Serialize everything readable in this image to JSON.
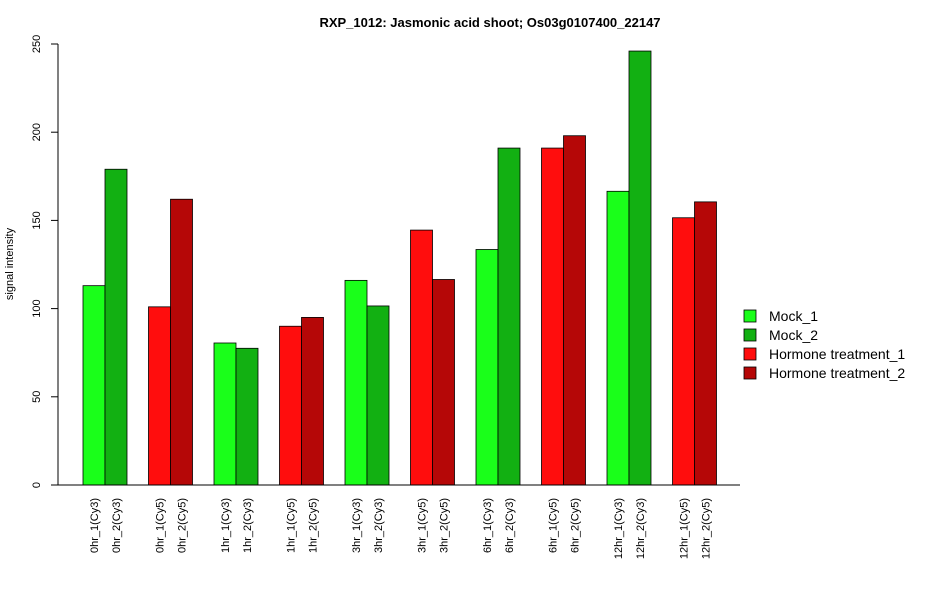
{
  "chart_data": {
    "type": "bar",
    "title": "RXP_1012: Jasmonic acid shoot; Os03g0107400_22147",
    "xlabel": "",
    "ylabel": "signal intensity",
    "ylim": [
      0,
      250
    ],
    "yticks": [
      0,
      50,
      100,
      150,
      200,
      250
    ],
    "grid": false,
    "legend_position": "right",
    "legend": [
      {
        "name": "Mock_1",
        "color": "#1aff1a"
      },
      {
        "name": "Mock_2",
        "color": "#12b012"
      },
      {
        "name": "Hormone treatment_1",
        "color": "#ff0d0d"
      },
      {
        "name": "Hormone treatment_2",
        "color": "#b50707"
      }
    ],
    "groups": [
      {
        "bars": [
          {
            "label": "0hr_1(Cy3)",
            "value": 113,
            "series": 0
          },
          {
            "label": "0hr_2(Cy3)",
            "value": 179,
            "series": 1
          }
        ]
      },
      {
        "bars": [
          {
            "label": "0hr_1(Cy5)",
            "value": 101,
            "series": 2
          },
          {
            "label": "0hr_2(Cy5)",
            "value": 162,
            "series": 3
          }
        ]
      },
      {
        "bars": [
          {
            "label": "1hr_1(Cy3)",
            "value": 80.5,
            "series": 0
          },
          {
            "label": "1hr_2(Cy3)",
            "value": 77.5,
            "series": 1
          }
        ]
      },
      {
        "bars": [
          {
            "label": "1hr_1(Cy5)",
            "value": 90,
            "series": 2
          },
          {
            "label": "1hr_2(Cy5)",
            "value": 95,
            "series": 3
          }
        ]
      },
      {
        "bars": [
          {
            "label": "3hr_1(Cy3)",
            "value": 116,
            "series": 0
          },
          {
            "label": "3hr_2(Cy3)",
            "value": 101.5,
            "series": 1
          }
        ]
      },
      {
        "bars": [
          {
            "label": "3hr_1(Cy5)",
            "value": 144.5,
            "series": 2
          },
          {
            "label": "3hr_2(Cy5)",
            "value": 116.5,
            "series": 3
          }
        ]
      },
      {
        "bars": [
          {
            "label": "6hr_1(Cy3)",
            "value": 133.5,
            "series": 0
          },
          {
            "label": "6hr_2(Cy3)",
            "value": 191,
            "series": 1
          }
        ]
      },
      {
        "bars": [
          {
            "label": "6hr_1(Cy5)",
            "value": 191,
            "series": 2
          },
          {
            "label": "6hr_2(Cy5)",
            "value": 198,
            "series": 3
          }
        ]
      },
      {
        "bars": [
          {
            "label": "12hr_1(Cy3)",
            "value": 166.5,
            "series": 0
          },
          {
            "label": "12hr_2(Cy3)",
            "value": 246,
            "series": 1
          }
        ]
      },
      {
        "bars": [
          {
            "label": "12hr_1(Cy5)",
            "value": 151.5,
            "series": 2
          },
          {
            "label": "12hr_2(Cy5)",
            "value": 160.5,
            "series": 3
          }
        ]
      }
    ]
  }
}
